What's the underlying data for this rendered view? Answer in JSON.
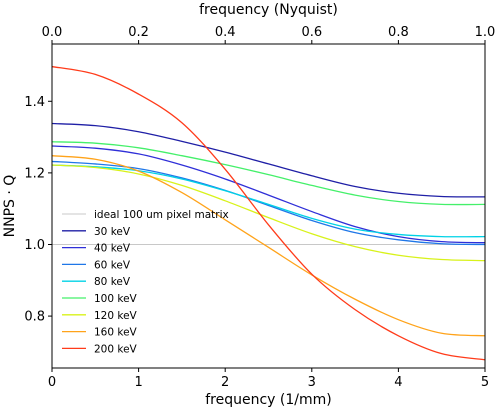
{
  "chart_data": {
    "type": "line",
    "title": "",
    "xlabel": "frequency (1/mm)",
    "x2label": "frequency (Nyquist)",
    "ylabel": "NNPS · Q",
    "xlim": [
      0,
      5
    ],
    "x2lim": [
      0,
      1
    ],
    "ylim": [
      0.655,
      1.56
    ],
    "xticks": [
      0,
      1,
      2,
      3,
      4,
      5
    ],
    "x2ticks": [
      0.0,
      0.2,
      0.4,
      0.6,
      0.8,
      1.0
    ],
    "yticks": [
      0.8,
      1.0,
      1.2,
      1.4
    ],
    "xtick_labels": [
      "0",
      "1",
      "2",
      "3",
      "4",
      "5"
    ],
    "x2tick_labels": [
      "0.0",
      "0.2",
      "0.4",
      "0.6",
      "0.8",
      "1.0"
    ],
    "ytick_labels": [
      "0.8",
      "1.0",
      "1.2",
      "1.4"
    ],
    "grid": false,
    "legend_position": "lower-left",
    "x": [
      0,
      0.5,
      1.0,
      1.5,
      2.0,
      2.5,
      3.0,
      3.5,
      4.0,
      4.5,
      5.0
    ],
    "series": [
      {
        "name": "ideal 100 um pixel matrix",
        "color": "#c8c8c8",
        "values": [
          1.0,
          1.0,
          1.0,
          1.0,
          1.0,
          1.0,
          1.0,
          1.0,
          1.0,
          1.0,
          1.0
        ]
      },
      {
        "name": "30 keV",
        "color": "#1f1fa6",
        "values": [
          1.338,
          1.332,
          1.315,
          1.288,
          1.258,
          1.225,
          1.192,
          1.162,
          1.143,
          1.134,
          1.133
        ]
      },
      {
        "name": "40 keV",
        "color": "#2f2fd8",
        "values": [
          1.275,
          1.269,
          1.253,
          1.222,
          1.183,
          1.138,
          1.092,
          1.05,
          1.022,
          1.008,
          1.005
        ]
      },
      {
        "name": "60 keV",
        "color": "#1f77e8",
        "values": [
          1.232,
          1.225,
          1.212,
          1.186,
          1.151,
          1.109,
          1.067,
          1.033,
          1.013,
          1.002,
          1.0
        ]
      },
      {
        "name": "80 keV",
        "color": "#00d2e6",
        "values": [
          1.222,
          1.217,
          1.206,
          1.183,
          1.15,
          1.112,
          1.073,
          1.043,
          1.028,
          1.022,
          1.022
        ]
      },
      {
        "name": "100 keV",
        "color": "#44f06a",
        "values": [
          1.287,
          1.283,
          1.27,
          1.248,
          1.223,
          1.195,
          1.165,
          1.138,
          1.12,
          1.112,
          1.112
        ]
      },
      {
        "name": "120 keV",
        "color": "#d8f21a",
        "values": [
          1.222,
          1.215,
          1.197,
          1.165,
          1.122,
          1.075,
          1.03,
          0.994,
          0.97,
          0.958,
          0.955
        ]
      },
      {
        "name": "160 keV",
        "color": "#ffa31a",
        "values": [
          1.248,
          1.238,
          1.205,
          1.145,
          1.069,
          0.992,
          0.915,
          0.847,
          0.79,
          0.752,
          0.745
        ]
      },
      {
        "name": "200 keV",
        "color": "#ff3b1a",
        "values": [
          1.497,
          1.475,
          1.42,
          1.34,
          1.21,
          1.055,
          0.917,
          0.818,
          0.745,
          0.695,
          0.678
        ]
      }
    ]
  }
}
